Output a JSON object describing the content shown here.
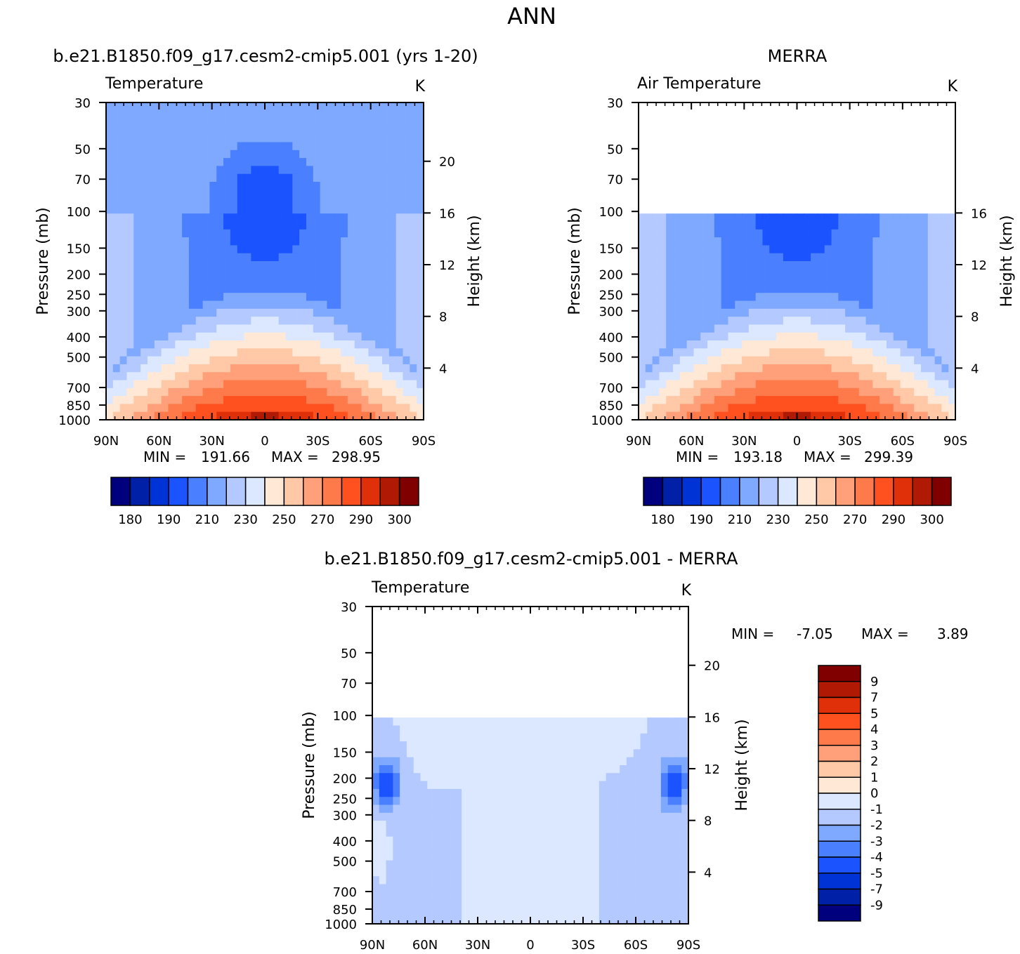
{
  "figure": {
    "title": "ANN"
  },
  "palettes": {
    "abs": [
      "#00007f",
      "#0020a8",
      "#0033d6",
      "#1a53ff",
      "#4a7fff",
      "#7fa8ff",
      "#b3c9ff",
      "#dbe8ff",
      "#ffe8d6",
      "#ffc9a8",
      "#ffa07a",
      "#ff7a4a",
      "#ff5020",
      "#e0300a",
      "#b01a05",
      "#800000"
    ],
    "diff": [
      "#00007f",
      "#0020a8",
      "#0033d6",
      "#1a53ff",
      "#4a7fff",
      "#7fa8ff",
      "#b3c9ff",
      "#dbe8ff",
      "#ffe8d6",
      "#ffc9a8",
      "#ffa07a",
      "#ff7a4a",
      "#ff5020",
      "#e0300a",
      "#b01a05",
      "#800000"
    ]
  },
  "chart_data": [
    {
      "id": "model",
      "type": "heatmap",
      "title": "b.e21.B1850.f09_g17.cesm2-cmip5.001 (yrs 1-20)",
      "left_label": "Temperature",
      "units": "K",
      "ylabel": "Pressure (mb)",
      "y2label": "Height (km)",
      "x_ticks": [
        "90N",
        "60N",
        "30N",
        "0",
        "30S",
        "60S",
        "90S"
      ],
      "y_ticks": [
        "30",
        "50",
        "70",
        "100",
        "150",
        "200",
        "250",
        "300",
        "400",
        "500",
        "700",
        "850",
        "1000"
      ],
      "y2_ticks": [
        "20",
        "16",
        "12",
        "8",
        "4"
      ],
      "stats": {
        "min_label": "MIN =",
        "min": "191.66",
        "max_label": "MAX =",
        "max": "298.95"
      },
      "levels": [
        "180",
        "190",
        "210",
        "230",
        "250",
        "270",
        "290",
        "300"
      ],
      "field": {
        "kind": "abs",
        "tropo": 300,
        "top": 30,
        "warmest": 298.95,
        "coldest": 191.66
      }
    },
    {
      "id": "obs",
      "type": "heatmap",
      "title": "MERRA",
      "left_label": "Air Temperature",
      "units": "K",
      "ylabel": "Pressure (mb)",
      "y2label": "Height (km)",
      "x_ticks": [
        "90N",
        "60N",
        "30N",
        "0",
        "30S",
        "60S",
        "90S"
      ],
      "y_ticks": [
        "30",
        "50",
        "70",
        "100",
        "150",
        "200",
        "250",
        "300",
        "400",
        "500",
        "700",
        "850",
        "1000"
      ],
      "y2_ticks": [
        "16",
        "12",
        "8",
        "4"
      ],
      "stats": {
        "min_label": "MIN =",
        "min": "193.18",
        "max_label": "MAX =",
        "max": "299.39"
      },
      "levels": [
        "180",
        "190",
        "210",
        "230",
        "250",
        "270",
        "290",
        "300"
      ],
      "field": {
        "kind": "abs",
        "tropo": 300,
        "top": 100,
        "warmest": 299.39,
        "coldest": 193.18
      }
    },
    {
      "id": "diff",
      "type": "heatmap",
      "title": "b.e21.B1850.f09_g17.cesm2-cmip5.001 - MERRA",
      "left_label": "Temperature",
      "units": "K",
      "ylabel": "Pressure (mb)",
      "y2label": "Height (km)",
      "x_ticks": [
        "90N",
        "60N",
        "30N",
        "0",
        "30S",
        "60S",
        "90S"
      ],
      "y_ticks": [
        "30",
        "50",
        "70",
        "100",
        "150",
        "200",
        "250",
        "300",
        "400",
        "500",
        "700",
        "850",
        "1000"
      ],
      "y2_ticks": [
        "20",
        "16",
        "12",
        "8",
        "4"
      ],
      "stats": {
        "min_label": "MIN =",
        "min": "-7.05",
        "max_label": "MAX =",
        "max": "3.89"
      },
      "levels": [
        "9",
        "7",
        "5",
        "4",
        "3",
        "2",
        "1",
        "0",
        "-1",
        "-2",
        "-3",
        "-4",
        "-5",
        "-7",
        "-9"
      ],
      "field": {
        "kind": "diff",
        "top": 100,
        "min": -7.05,
        "max": 3.89
      }
    }
  ]
}
